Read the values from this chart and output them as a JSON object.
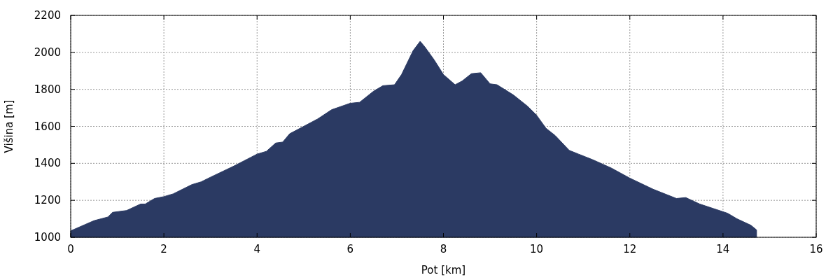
{
  "chart_data": {
    "type": "area",
    "xlabel": "Pot [km]",
    "ylabel": "Višina [m]",
    "x": [
      0,
      0.5,
      0.8,
      0.9,
      1.2,
      1.5,
      1.6,
      1.8,
      2.0,
      2.2,
      2.4,
      2.6,
      2.8,
      3.0,
      3.5,
      4.0,
      4.2,
      4.4,
      4.55,
      4.7,
      5.0,
      5.3,
      5.6,
      6.0,
      6.2,
      6.5,
      6.7,
      6.95,
      7.1,
      7.35,
      7.5,
      7.6,
      7.8,
      8.0,
      8.25,
      8.4,
      8.6,
      8.8,
      9.0,
      9.15,
      9.5,
      9.8,
      10.0,
      10.2,
      10.4,
      10.7,
      10.9,
      11.2,
      11.6,
      12.0,
      12.5,
      13.0,
      13.2,
      13.5,
      13.8,
      14.1,
      14.3,
      14.6,
      14.72
    ],
    "series": [
      {
        "color": "#2b3a63",
        "values": [
          1035,
          1090,
          1110,
          1135,
          1145,
          1180,
          1180,
          1210,
          1220,
          1235,
          1260,
          1285,
          1300,
          1325,
          1385,
          1450,
          1465,
          1510,
          1515,
          1560,
          1600,
          1640,
          1690,
          1725,
          1730,
          1790,
          1820,
          1825,
          1880,
          2010,
          2060,
          2030,
          1960,
          1880,
          1825,
          1845,
          1885,
          1890,
          1830,
          1825,
          1770,
          1710,
          1660,
          1590,
          1550,
          1470,
          1450,
          1420,
          1375,
          1320,
          1260,
          1210,
          1215,
          1180,
          1155,
          1130,
          1100,
          1065,
          1040
        ]
      }
    ],
    "xlim": [
      0,
      16
    ],
    "xticks": [
      0,
      2,
      4,
      6,
      8,
      10,
      12,
      14,
      16
    ],
    "ylim": [
      1000,
      2200
    ],
    "yticks": [
      1000,
      1200,
      1400,
      1600,
      1800,
      2000,
      2200
    ],
    "grid": true
  }
}
